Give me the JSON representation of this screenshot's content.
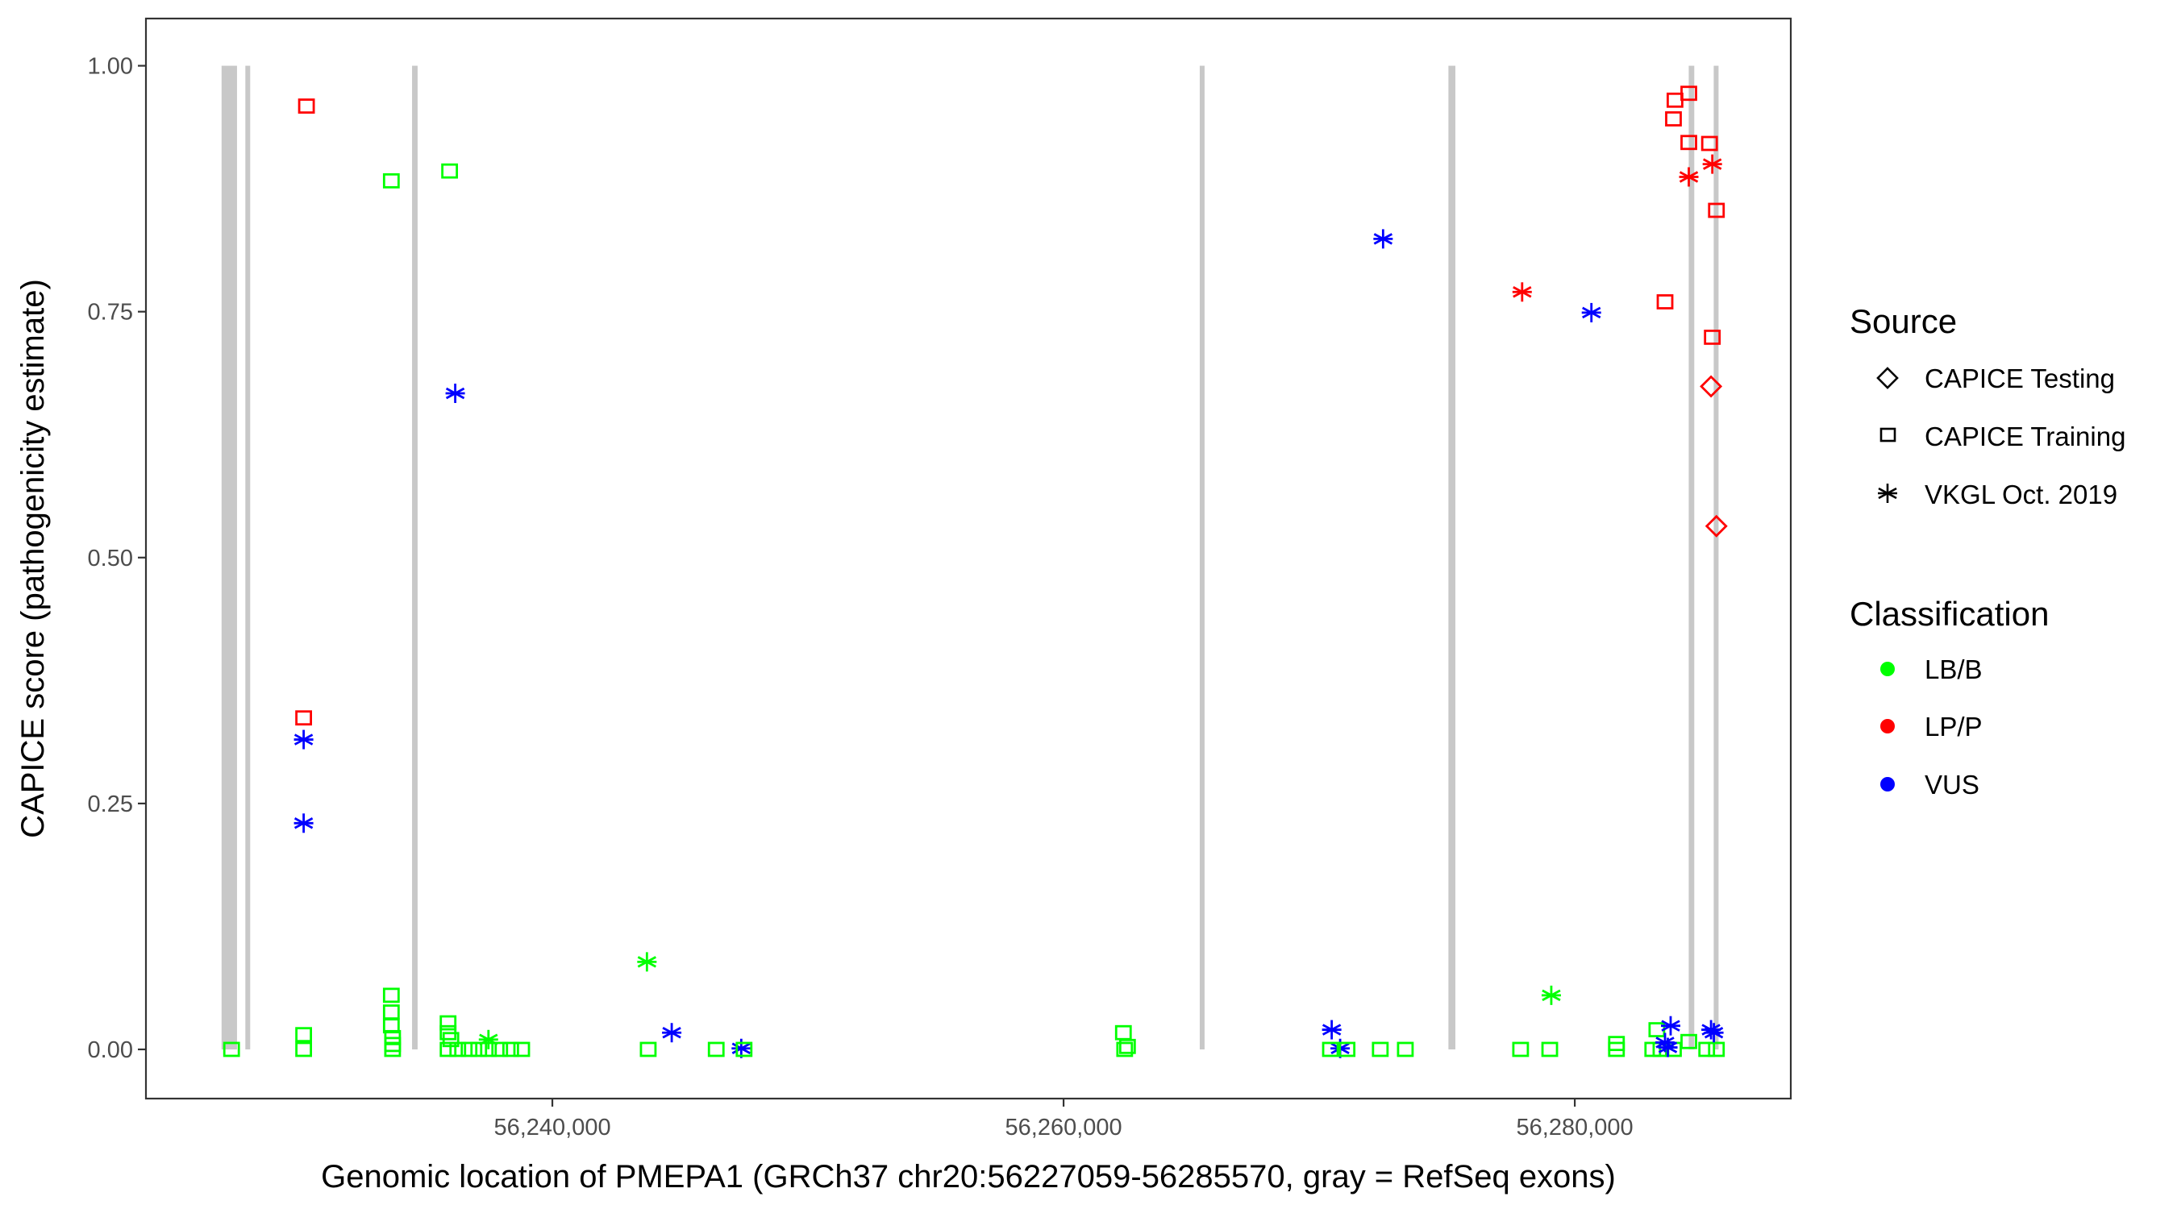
{
  "chart_data": {
    "type": "scatter",
    "xlabel": "Genomic location of PMEPA1 (GRCh37 chr20:56227059-56285570, gray = RefSeq exons)",
    "ylabel": "CAPICE score (pathogenicity estimate)",
    "xlim": [
      56224100,
      56288450
    ],
    "ylim": [
      -0.05,
      1.048
    ],
    "x_ticks": [
      56240000,
      56260000,
      56280000
    ],
    "x_tick_labels": [
      "56,240,000",
      "56,260,000",
      "56,280,000"
    ],
    "y_ticks": [
      0,
      0.25,
      0.5,
      0.75,
      1.0
    ],
    "y_tick_labels": [
      "0.00",
      "0.25",
      "0.50",
      "0.75",
      "1.00"
    ],
    "grid": false,
    "exon_color": "#c8c8c8",
    "exons": [
      [
        56227059,
        56227663
      ],
      [
        56227989,
        56228152
      ],
      [
        56234511,
        56234728
      ],
      [
        56265327,
        56265490
      ],
      [
        56275056,
        56275328
      ],
      [
        56284457,
        56284674
      ],
      [
        56285435,
        56285570
      ]
    ],
    "legend": {
      "placement": "right",
      "source": {
        "title": "Source",
        "items": [
          {
            "label": "CAPICE Testing",
            "shape": "diamond"
          },
          {
            "label": "CAPICE Training",
            "shape": "square"
          },
          {
            "label": "VKGL Oct. 2019",
            "shape": "asterisk"
          }
        ]
      },
      "classification": {
        "title": "Classification",
        "items": [
          {
            "label": "LB/B",
            "color": "#00ff00"
          },
          {
            "label": "LP/P",
            "color": "#ff0000"
          },
          {
            "label": "VUS",
            "color": "#0000ff"
          }
        ]
      }
    },
    "columns": [
      "position",
      "score",
      "source",
      "classification"
    ],
    "points": [
      [
        56230380,
        0.959,
        "CAPICE Training",
        "LP/P"
      ],
      [
        56230270,
        0.337,
        "CAPICE Training",
        "LP/P"
      ],
      [
        56233700,
        0.883,
        "CAPICE Training",
        "LB/B"
      ],
      [
        56235980,
        0.893,
        "CAPICE Training",
        "LB/B"
      ],
      [
        56236200,
        0.667,
        "VKGL Oct. 2019",
        "VUS"
      ],
      [
        56230270,
        0.315,
        "VKGL Oct. 2019",
        "VUS"
      ],
      [
        56230270,
        0.23,
        "VKGL Oct. 2019",
        "VUS"
      ],
      [
        56243700,
        0.089,
        "VKGL Oct. 2019",
        "LB/B"
      ],
      [
        56244670,
        0.017,
        "VKGL Oct. 2019",
        "VUS"
      ],
      [
        56247390,
        0.001,
        "VKGL Oct. 2019",
        "VUS"
      ],
      [
        56227450,
        0.0,
        "CAPICE Training",
        "LB/B"
      ],
      [
        56230270,
        0.0,
        "CAPICE Training",
        "LB/B"
      ],
      [
        56230270,
        0.015,
        "CAPICE Training",
        "LB/B"
      ],
      [
        56233700,
        0.055,
        "CAPICE Training",
        "LB/B"
      ],
      [
        56233700,
        0.038,
        "CAPICE Training",
        "LB/B"
      ],
      [
        56233700,
        0.024,
        "CAPICE Training",
        "LB/B"
      ],
      [
        56233750,
        0.012,
        "CAPICE Training",
        "LB/B"
      ],
      [
        56233750,
        0.005,
        "CAPICE Training",
        "LB/B"
      ],
      [
        56233750,
        0.0,
        "CAPICE Training",
        "LB/B"
      ],
      [
        56235920,
        0.027,
        "CAPICE Training",
        "LB/B"
      ],
      [
        56235920,
        0.017,
        "CAPICE Training",
        "LB/B"
      ],
      [
        56236030,
        0.01,
        "CAPICE Training",
        "LB/B"
      ],
      [
        56235920,
        0.0,
        "CAPICE Training",
        "LB/B"
      ],
      [
        56236300,
        0.0,
        "CAPICE Training",
        "LB/B"
      ],
      [
        56236740,
        0.0,
        "CAPICE Training",
        "LB/B"
      ],
      [
        56237120,
        0.0,
        "CAPICE Training",
        "LB/B"
      ],
      [
        56237500,
        0.01,
        "VKGL Oct. 2019",
        "LB/B"
      ],
      [
        56237500,
        0.0,
        "CAPICE Training",
        "LB/B"
      ],
      [
        56237940,
        0.0,
        "CAPICE Training",
        "LB/B"
      ],
      [
        56238370,
        0.0,
        "CAPICE Training",
        "LB/B"
      ],
      [
        56238800,
        0.0,
        "CAPICE Training",
        "LB/B"
      ],
      [
        56243750,
        0.0,
        "CAPICE Training",
        "LB/B"
      ],
      [
        56246410,
        0.0,
        "CAPICE Training",
        "LB/B"
      ],
      [
        56247500,
        0.0,
        "CAPICE Training",
        "LB/B"
      ],
      [
        56262340,
        0.017,
        "CAPICE Training",
        "LB/B"
      ],
      [
        56262390,
        0.0,
        "CAPICE Training",
        "LB/B"
      ],
      [
        56262500,
        0.003,
        "CAPICE Training",
        "LB/B"
      ],
      [
        56272500,
        0.824,
        "VKGL Oct. 2019",
        "VUS"
      ],
      [
        56277940,
        0.77,
        "VKGL Oct. 2019",
        "LP/P"
      ],
      [
        56280650,
        0.749,
        "VKGL Oct. 2019",
        "VUS"
      ],
      [
        56283530,
        0.76,
        "CAPICE Training",
        "LP/P"
      ],
      [
        56283920,
        0.965,
        "CAPICE Training",
        "LP/P"
      ],
      [
        56284460,
        0.972,
        "CAPICE Training",
        "LP/P"
      ],
      [
        56283860,
        0.946,
        "CAPICE Training",
        "LP/P"
      ],
      [
        56284460,
        0.922,
        "CAPICE Training",
        "LP/P"
      ],
      [
        56285270,
        0.921,
        "CAPICE Training",
        "LP/P"
      ],
      [
        56285540,
        0.853,
        "CAPICE Training",
        "LP/P"
      ],
      [
        56285380,
        0.724,
        "CAPICE Training",
        "LP/P"
      ],
      [
        56284460,
        0.887,
        "VKGL Oct. 2019",
        "LP/P"
      ],
      [
        56285380,
        0.9,
        "VKGL Oct. 2019",
        "LP/P"
      ],
      [
        56285330,
        0.674,
        "CAPICE Testing",
        "LP/P"
      ],
      [
        56285540,
        0.532,
        "CAPICE Testing",
        "LP/P"
      ],
      [
        56270490,
        0.02,
        "VKGL Oct. 2019",
        "VUS"
      ],
      [
        56270820,
        0.001,
        "VKGL Oct. 2019",
        "VUS"
      ],
      [
        56270440,
        0.0,
        "CAPICE Training",
        "LB/B"
      ],
      [
        56271090,
        0.0,
        "CAPICE Training",
        "LB/B"
      ],
      [
        56272390,
        0.0,
        "CAPICE Training",
        "LB/B"
      ],
      [
        56273370,
        0.0,
        "CAPICE Training",
        "LB/B"
      ],
      [
        56277880,
        0.0,
        "CAPICE Training",
        "LB/B"
      ],
      [
        56279020,
        0.0,
        "CAPICE Training",
        "LB/B"
      ],
      [
        56279080,
        0.055,
        "VKGL Oct. 2019",
        "LB/B"
      ],
      [
        56281630,
        0.006,
        "CAPICE Training",
        "LB/B"
      ],
      [
        56281630,
        0.0,
        "CAPICE Training",
        "LB/B"
      ],
      [
        56283050,
        0.0,
        "CAPICE Training",
        "LB/B"
      ],
      [
        56283210,
        0.02,
        "CAPICE Training",
        "LB/B"
      ],
      [
        56283370,
        0.0,
        "CAPICE Training",
        "LB/B"
      ],
      [
        56283860,
        0.0,
        "CAPICE Training",
        "LB/B"
      ],
      [
        56284460,
        0.008,
        "CAPICE Training",
        "LB/B"
      ],
      [
        56285160,
        0.0,
        "CAPICE Training",
        "LB/B"
      ],
      [
        56285540,
        0.0,
        "CAPICE Training",
        "LB/B"
      ],
      [
        56283750,
        0.024,
        "VKGL Oct. 2019",
        "VUS"
      ],
      [
        56283530,
        0.007,
        "VKGL Oct. 2019",
        "VUS"
      ],
      [
        56283640,
        0.002,
        "VKGL Oct. 2019",
        "VUS"
      ],
      [
        56285330,
        0.02,
        "VKGL Oct. 2019",
        "VUS"
      ],
      [
        56285440,
        0.017,
        "VKGL Oct. 2019",
        "VUS"
      ]
    ]
  }
}
